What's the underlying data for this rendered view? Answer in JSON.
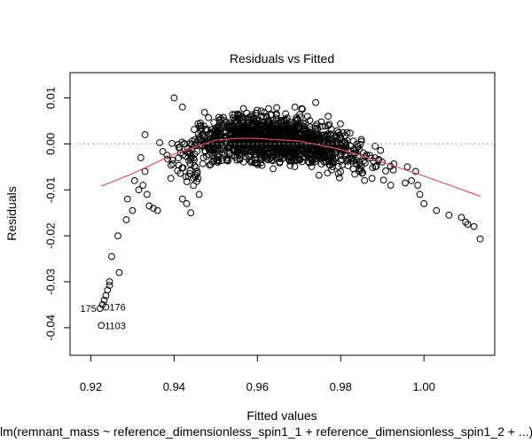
{
  "chart_data": {
    "type": "scatter",
    "title": "Residuals vs Fitted",
    "xlabel": "Fitted values",
    "ylabel": "Residuals",
    "subtitle": "lm(remnant_mass ~ reference_dimensionless_spin1_1 + reference_dimensionless_spin1_2 + ...)",
    "xlim": [
      0.915,
      1.017
    ],
    "ylim": [
      -0.046,
      0.0155
    ],
    "x_ticks": [
      0.92,
      0.94,
      0.96,
      0.98,
      1.0
    ],
    "x_tick_labels": [
      "0.92",
      "0.94",
      "0.96",
      "0.98",
      "1.00"
    ],
    "y_ticks": [
      -0.04,
      -0.03,
      -0.02,
      -0.01,
      0.0,
      0.01
    ],
    "y_tick_labels": [
      "-0.04",
      "-0.03",
      "-0.02",
      "-0.01",
      "0.00",
      "0.01"
    ],
    "zero_line": 0.0,
    "colors": {
      "points": "#000000",
      "smooth": "#DF536B",
      "zero_line": "#aaaaaa"
    },
    "smooth_line": {
      "x": [
        0.9225,
        0.93,
        0.94,
        0.95,
        0.955,
        0.96,
        0.97,
        0.98,
        0.99,
        1.0,
        1.0135
      ],
      "y": [
        -0.0092,
        -0.0065,
        -0.0022,
        0.0008,
        0.0012,
        0.0012,
        0.0006,
        -0.0012,
        -0.004,
        -0.007,
        -0.0114
      ]
    },
    "cloud": {
      "x_range": [
        0.932,
        0.996
      ],
      "count": 1350
    },
    "points": [
      [
        0.9225,
        -0.0395
      ],
      [
        0.9222,
        -0.0358
      ],
      [
        0.9236,
        -0.0355
      ],
      [
        0.9228,
        -0.035
      ],
      [
        0.9232,
        -0.034
      ],
      [
        0.9236,
        -0.033
      ],
      [
        0.924,
        -0.0318
      ],
      [
        0.9245,
        -0.0308
      ],
      [
        0.9245,
        -0.03
      ],
      [
        0.925,
        -0.0245
      ],
      [
        0.9265,
        -0.02
      ],
      [
        0.9268,
        -0.028
      ],
      [
        0.9285,
        -0.0165
      ],
      [
        0.93,
        -0.0145
      ],
      [
        0.9288,
        -0.012
      ],
      [
        0.9305,
        -0.008
      ],
      [
        0.9315,
        -0.01
      ],
      [
        0.9325,
        -0.009
      ],
      [
        0.9335,
        -0.011
      ],
      [
        0.934,
        -0.0135
      ],
      [
        0.935,
        -0.014
      ],
      [
        0.933,
        -0.006
      ],
      [
        0.932,
        -0.003
      ],
      [
        0.933,
        0.002
      ],
      [
        0.94,
        0.01
      ],
      [
        0.942,
        0.008
      ],
      [
        0.936,
        -0.0145
      ],
      [
        0.944,
        -0.015
      ],
      [
        0.943,
        -0.013
      ],
      [
        0.942,
        -0.012
      ],
      [
        0.946,
        -0.011
      ],
      [
        0.992,
        -0.009
      ],
      [
        0.9955,
        -0.0085
      ],
      [
        0.997,
        -0.008
      ],
      [
        0.9985,
        -0.009
      ],
      [
        0.999,
        -0.011
      ],
      [
        1.0,
        -0.013
      ],
      [
        1.003,
        -0.0145
      ],
      [
        1.006,
        -0.0155
      ],
      [
        1.009,
        -0.016
      ],
      [
        1.01,
        -0.017
      ],
      [
        1.012,
        -0.018
      ],
      [
        1.0105,
        -0.0175
      ],
      [
        1.0135,
        -0.0207
      ],
      [
        0.998,
        -0.006
      ],
      [
        0.996,
        -0.005
      ],
      [
        0.977,
        0.006
      ],
      [
        0.974,
        0.009
      ],
      [
        0.969,
        0.008
      ]
    ],
    "labeled_points": [
      {
        "label": "175",
        "x": 0.9222,
        "y": -0.0358,
        "side": "left"
      },
      {
        "label": "176",
        "x": 0.9236,
        "y": -0.0355,
        "side": "right"
      },
      {
        "label": "1103",
        "x": 0.9225,
        "y": -0.0395,
        "side": "right"
      }
    ]
  }
}
